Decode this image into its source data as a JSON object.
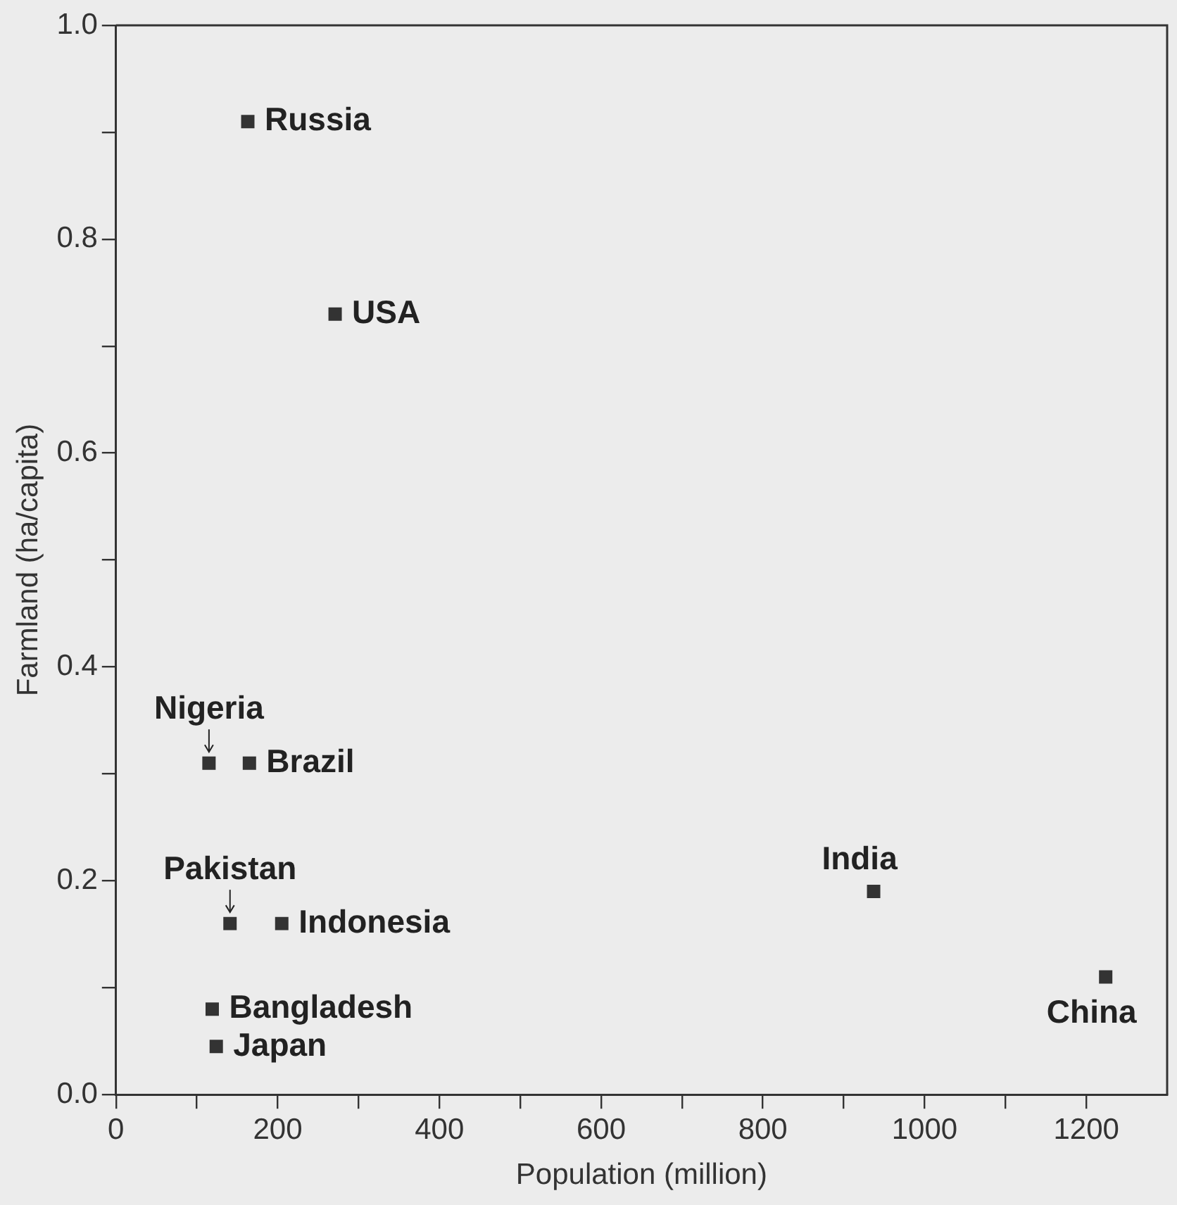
{
  "chart_data": {
    "type": "scatter",
    "xlabel": "Population (million)",
    "ylabel": "Farmland (ha/capita)",
    "series": [
      {
        "color": "#333333",
        "x": [
          163,
          271,
          115,
          165,
          141,
          205,
          937,
          1224,
          119,
          124
        ],
        "values": [
          0.91,
          0.73,
          0.31,
          0.31,
          0.16,
          0.16,
          0.19,
          0.11,
          0.08,
          0.045
        ]
      }
    ],
    "annotations": [
      {
        "text": "Russia",
        "x": 163,
        "y": 0.91
      },
      {
        "text": "USA",
        "x": 271,
        "y": 0.73
      },
      {
        "text": "Nigeria",
        "x": 115,
        "y": 0.31
      },
      {
        "text": "Brazil",
        "x": 165,
        "y": 0.31
      },
      {
        "text": "Pakistan",
        "x": 141,
        "y": 0.16
      },
      {
        "text": "Indonesia",
        "x": 205,
        "y": 0.16
      },
      {
        "text": "India",
        "x": 937,
        "y": 0.19
      },
      {
        "text": "China",
        "x": 1224,
        "y": 0.11
      },
      {
        "text": "Bangladesh",
        "x": 119,
        "y": 0.08
      },
      {
        "text": "Japan",
        "x": 124,
        "y": 0.045
      }
    ],
    "xlim": [
      0,
      1300
    ],
    "ylim": [
      0,
      1.0
    ],
    "xticks": [
      0,
      {
        "value": 100,
        "label": null
      },
      200,
      {
        "value": 300,
        "label": null
      },
      400,
      {
        "value": 500,
        "label": null
      },
      600,
      {
        "value": 700,
        "label": null
      },
      800,
      {
        "value": 900,
        "label": null
      },
      1000,
      {
        "value": 1100,
        "label": null
      },
      1200
    ],
    "yticks": [
      {
        "value": 0,
        "label": "0.0"
      },
      {
        "value": 0.1,
        "label": null
      },
      {
        "value": 0.2,
        "label": "0.2"
      },
      {
        "value": 0.3,
        "label": null
      },
      {
        "value": 0.4,
        "label": "0.4"
      },
      {
        "value": 0.5,
        "label": null
      },
      {
        "value": 0.6,
        "label": "0.6"
      },
      {
        "value": 0.7,
        "label": null
      },
      {
        "value": 0.8,
        "label": "0.8"
      },
      {
        "value": 0.9,
        "label": null
      },
      {
        "value": 1.0,
        "label": "1.0"
      }
    ],
    "marker": "square"
  }
}
